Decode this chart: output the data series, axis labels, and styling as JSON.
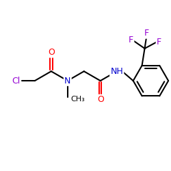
{
  "background_color": "#ffffff",
  "figsize": [
    2.5,
    2.5
  ],
  "dpi": 100,
  "bond_color": "#000000",
  "lw": 1.5,
  "colors": {
    "Cl": "#9400D3",
    "O": "#ff0000",
    "N": "#0000cd",
    "F": "#9400D3",
    "C": "#000000"
  }
}
